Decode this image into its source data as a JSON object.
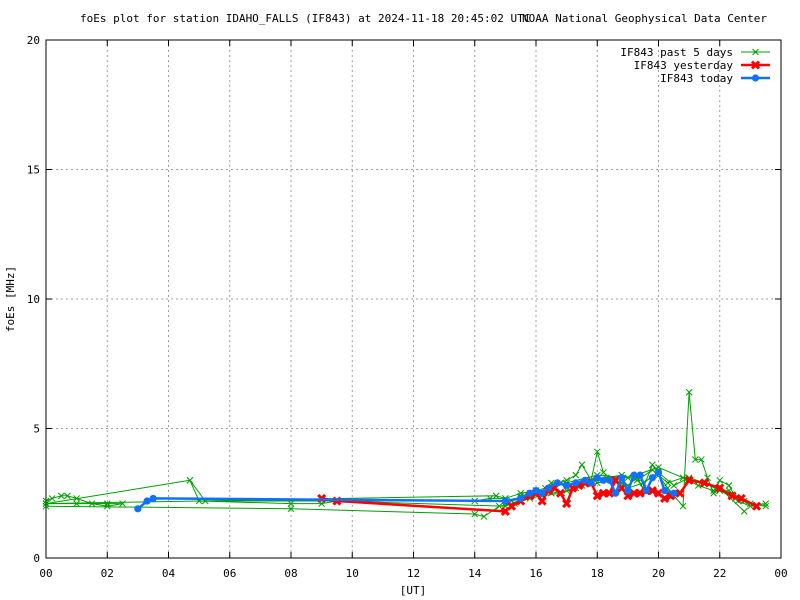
{
  "chart_data": {
    "type": "line",
    "title": "foEs plot for station IDAHO_FALLS (IF843) at 2024-11-18 20:45:02 UTC",
    "subtitle": "NOAA National Geophysical Data Center",
    "xlabel": "[UT]",
    "ylabel": "foEs [MHz]",
    "xlim": [
      0,
      24
    ],
    "ylim": [
      0,
      20
    ],
    "x_ticks": [
      "00",
      "02",
      "04",
      "06",
      "08",
      "10",
      "12",
      "14",
      "16",
      "18",
      "20",
      "22",
      "00"
    ],
    "y_ticks": [
      "0",
      "5",
      "10",
      "15",
      "20"
    ],
    "grid": true,
    "legend_position": "top-right",
    "series": [
      {
        "name": "IF843 past 5 days",
        "color": "#00a000",
        "marker": "x",
        "x": [
          0.0,
          0.2,
          0.5,
          0.7,
          1.0,
          1.5,
          2.0,
          2.5,
          2.0,
          1.0,
          0.0,
          14.7,
          15.0,
          15.2,
          15.5,
          15.8,
          16.0,
          16.3,
          16.5,
          16.8,
          17.0,
          17.3,
          17.5,
          17.8,
          18.0,
          18.2,
          18.5,
          18.8,
          19.0,
          19.3,
          19.5,
          19.8,
          20.0,
          20.3,
          20.5,
          20.8,
          21.0,
          21.2,
          21.4,
          21.6,
          21.8,
          22.0,
          22.3,
          22.6,
          23.0,
          23.5
        ],
        "y": [
          2.2,
          2.3,
          2.4,
          2.4,
          2.3,
          2.1,
          2.0,
          2.1,
          2.1,
          2.1,
          2.1,
          2.4,
          2.3,
          2.2,
          2.4,
          2.5,
          2.6,
          2.7,
          2.9,
          2.9,
          3.0,
          3.2,
          3.6,
          3.0,
          4.1,
          3.3,
          3.0,
          2.9,
          2.8,
          3.1,
          2.7,
          3.6,
          3.2,
          2.7,
          2.4,
          2.0,
          6.4,
          3.8,
          3.8,
          3.1,
          2.5,
          3.0,
          2.8,
          2.2,
          2.0,
          2.1
        ]
      },
      {
        "name": "",
        "color": "#00a000",
        "marker": "x",
        "x": [
          0.0,
          4.7,
          5.0,
          8.0,
          9.0,
          9.5,
          14.0,
          14.5,
          15.0,
          15.5,
          16.0,
          16.5,
          17.0,
          17.5,
          18.0,
          18.5,
          19.0,
          19.5,
          20.0,
          20.5,
          21.0,
          21.5,
          22.0,
          22.5,
          23.0,
          23.5
        ],
        "y": [
          2.1,
          3.0,
          2.2,
          2.1,
          2.1,
          2.2,
          2.2,
          2.3,
          2.3,
          2.5,
          2.6,
          2.5,
          2.6,
          2.8,
          2.9,
          3.0,
          2.7,
          2.9,
          3.3,
          2.8,
          3.1,
          2.9,
          2.6,
          2.3,
          2.1,
          2.0
        ]
      },
      {
        "name": "",
        "color": "#00a000",
        "marker": "x",
        "x": [
          0.0,
          8.0,
          14.0,
          14.3,
          14.8,
          15.3,
          15.8,
          16.2,
          16.8,
          17.3,
          17.8,
          18.3,
          18.8,
          19.3,
          19.8,
          20.3,
          20.8,
          21.3,
          21.8,
          22.3,
          22.8
        ],
        "y": [
          2.0,
          1.9,
          1.7,
          1.6,
          2.0,
          2.1,
          2.3,
          2.4,
          2.5,
          2.7,
          3.0,
          3.1,
          3.2,
          3.0,
          3.4,
          2.9,
          3.1,
          2.8,
          2.6,
          2.6,
          2.2
        ]
      },
      {
        "name": "",
        "color": "#00a000",
        "marker": "x",
        "x": [
          4.7,
          5.2,
          9.5,
          15.0,
          16.0,
          17.0,
          18.0,
          19.0,
          20.0,
          21.0,
          22.0,
          22.8
        ],
        "y": [
          3.0,
          2.2,
          2.2,
          2.0,
          2.5,
          2.9,
          3.2,
          3.1,
          3.5,
          3.0,
          2.7,
          1.8
        ]
      },
      {
        "name": "IF843 yesterday",
        "color": "#ff0000",
        "marker": "X",
        "x": [
          9.0,
          9.5,
          15.0,
          15.2,
          15.5,
          15.8,
          16.0,
          16.2,
          16.4,
          16.6,
          16.8,
          17.0,
          17.2,
          17.4,
          17.6,
          17.8,
          18.0,
          18.2,
          18.4,
          18.6,
          18.8,
          19.0,
          19.2,
          19.4,
          19.6,
          19.8,
          20.0,
          20.2,
          20.4,
          20.7,
          21.0,
          21.5,
          22.0,
          22.4,
          22.7,
          23.2
        ],
        "y": [
          2.3,
          2.2,
          1.8,
          2.0,
          2.2,
          2.4,
          2.5,
          2.2,
          2.6,
          2.7,
          2.5,
          2.1,
          2.7,
          2.8,
          2.9,
          2.9,
          2.4,
          2.5,
          2.5,
          3.0,
          2.7,
          2.4,
          2.5,
          2.5,
          2.6,
          2.6,
          2.5,
          2.3,
          2.4,
          2.5,
          3.0,
          2.9,
          2.7,
          2.4,
          2.3,
          2.0
        ]
      },
      {
        "name": "IF843 today",
        "color": "#1070ff",
        "marker": "circle",
        "x": [
          3.0,
          3.3,
          3.5,
          15.0,
          15.5,
          15.8,
          16.0,
          16.2,
          16.4,
          16.7,
          17.0,
          17.3,
          17.6,
          17.8,
          18.0,
          18.2,
          18.4,
          18.6,
          18.8,
          19.0,
          19.2,
          19.4,
          19.6,
          19.8,
          20.0,
          20.2,
          20.5
        ],
        "y": [
          1.9,
          2.2,
          2.3,
          2.2,
          2.3,
          2.5,
          2.6,
          2.5,
          2.7,
          2.9,
          2.8,
          2.9,
          3.0,
          2.9,
          3.1,
          3.0,
          3.0,
          2.5,
          3.1,
          2.6,
          3.2,
          3.2,
          2.6,
          3.1,
          3.3,
          2.6,
          2.5
        ]
      }
    ]
  }
}
